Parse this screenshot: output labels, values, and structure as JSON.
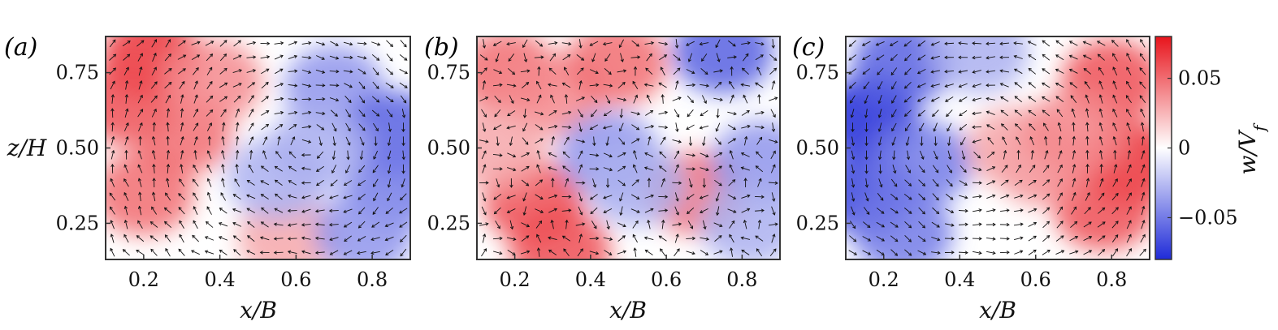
{
  "chart_data": [
    {
      "type": "heatmap",
      "panel_label": "(a)",
      "xlabel": "x/B",
      "ylabel": "z/H",
      "xlim": [
        0.1,
        0.9
      ],
      "ylim": [
        0.13,
        0.87
      ],
      "xticks": [
        0.2,
        0.4,
        0.6,
        0.8
      ],
      "yticks": [
        0.25,
        0.5,
        0.75
      ],
      "xtick_labels": [
        "0.2",
        "0.4",
        "0.6",
        "0.8"
      ],
      "ytick_labels": [
        "0.25",
        "0.50",
        "0.75"
      ],
      "field": "w/V_f",
      "overlay": "velocity vectors",
      "blobs": [
        {
          "x": 0.22,
          "z": 0.8,
          "w": 0.07
        },
        {
          "x": 0.16,
          "z": 0.65,
          "w": 0.06
        },
        {
          "x": 0.3,
          "z": 0.55,
          "w": 0.05
        },
        {
          "x": 0.2,
          "z": 0.35,
          "w": 0.05
        },
        {
          "x": 0.38,
          "z": 0.72,
          "w": 0.04
        },
        {
          "x": 0.58,
          "z": 0.2,
          "w": 0.03
        },
        {
          "x": 0.7,
          "z": 0.7,
          "w": -0.04
        },
        {
          "x": 0.86,
          "z": 0.55,
          "w": -0.06
        },
        {
          "x": 0.86,
          "z": 0.38,
          "w": -0.05
        },
        {
          "x": 0.78,
          "z": 0.22,
          "w": -0.04
        },
        {
          "x": 0.55,
          "z": 0.4,
          "w": -0.03
        },
        {
          "x": 0.66,
          "z": 0.5,
          "w": -0.03
        }
      ]
    },
    {
      "type": "heatmap",
      "panel_label": "(b)",
      "xlabel": "x/B",
      "ylabel": "",
      "xlim": [
        0.1,
        0.9
      ],
      "ylim": [
        0.13,
        0.87
      ],
      "xticks": [
        0.2,
        0.4,
        0.6,
        0.8
      ],
      "yticks": [
        0.25,
        0.5,
        0.75
      ],
      "xtick_labels": [
        "0.2",
        "0.4",
        "0.6",
        "0.8"
      ],
      "ytick_labels": [
        "0.25",
        "0.50",
        "0.75"
      ],
      "field": "w/V_f",
      "overlay": "velocity vectors",
      "blobs": [
        {
          "x": 0.18,
          "z": 0.75,
          "w": 0.05
        },
        {
          "x": 0.3,
          "z": 0.68,
          "w": 0.04
        },
        {
          "x": 0.47,
          "z": 0.78,
          "w": 0.05
        },
        {
          "x": 0.25,
          "z": 0.32,
          "w": 0.06
        },
        {
          "x": 0.32,
          "z": 0.16,
          "w": 0.06
        },
        {
          "x": 0.68,
          "z": 0.35,
          "w": 0.05
        },
        {
          "x": 0.75,
          "z": 0.82,
          "w": -0.06
        },
        {
          "x": 0.45,
          "z": 0.48,
          "w": -0.04
        },
        {
          "x": 0.52,
          "z": 0.38,
          "w": -0.03
        },
        {
          "x": 0.85,
          "z": 0.45,
          "w": -0.04
        },
        {
          "x": 0.82,
          "z": 0.25,
          "w": -0.03
        },
        {
          "x": 0.15,
          "z": 0.5,
          "w": 0.03
        }
      ]
    },
    {
      "type": "heatmap",
      "panel_label": "(c)",
      "xlabel": "x/B",
      "ylabel": "",
      "xlim": [
        0.1,
        0.9
      ],
      "ylim": [
        0.13,
        0.87
      ],
      "xticks": [
        0.2,
        0.4,
        0.6,
        0.8
      ],
      "yticks": [
        0.25,
        0.5,
        0.75
      ],
      "xtick_labels": [
        "0.2",
        "0.4",
        "0.6",
        "0.8"
      ],
      "ytick_labels": [
        "0.25",
        "0.50",
        "0.75"
      ],
      "field": "w/V_f",
      "overlay": "velocity vectors",
      "blobs": [
        {
          "x": 0.16,
          "z": 0.6,
          "w": -0.08
        },
        {
          "x": 0.15,
          "z": 0.35,
          "w": -0.07
        },
        {
          "x": 0.25,
          "z": 0.78,
          "w": -0.06
        },
        {
          "x": 0.3,
          "z": 0.45,
          "w": -0.05
        },
        {
          "x": 0.45,
          "z": 0.82,
          "w": -0.03
        },
        {
          "x": 0.25,
          "z": 0.22,
          "w": -0.05
        },
        {
          "x": 0.8,
          "z": 0.72,
          "w": 0.06
        },
        {
          "x": 0.85,
          "z": 0.45,
          "w": 0.07
        },
        {
          "x": 0.78,
          "z": 0.3,
          "w": 0.06
        },
        {
          "x": 0.62,
          "z": 0.45,
          "w": 0.04
        },
        {
          "x": 0.55,
          "z": 0.5,
          "w": 0.03
        },
        {
          "x": 0.7,
          "z": 0.55,
          "w": 0.04
        }
      ]
    }
  ],
  "colorbar": {
    "label": "w/V_f",
    "range": [
      -0.08,
      0.08
    ],
    "ticks": [
      0.05,
      0,
      -0.05
    ],
    "tick_labels": [
      "0.05",
      "0",
      "−0.05"
    ],
    "colors": {
      "positive": "#e8141c",
      "zero": "#ffffff",
      "negative": "#1f2bd8"
    }
  }
}
